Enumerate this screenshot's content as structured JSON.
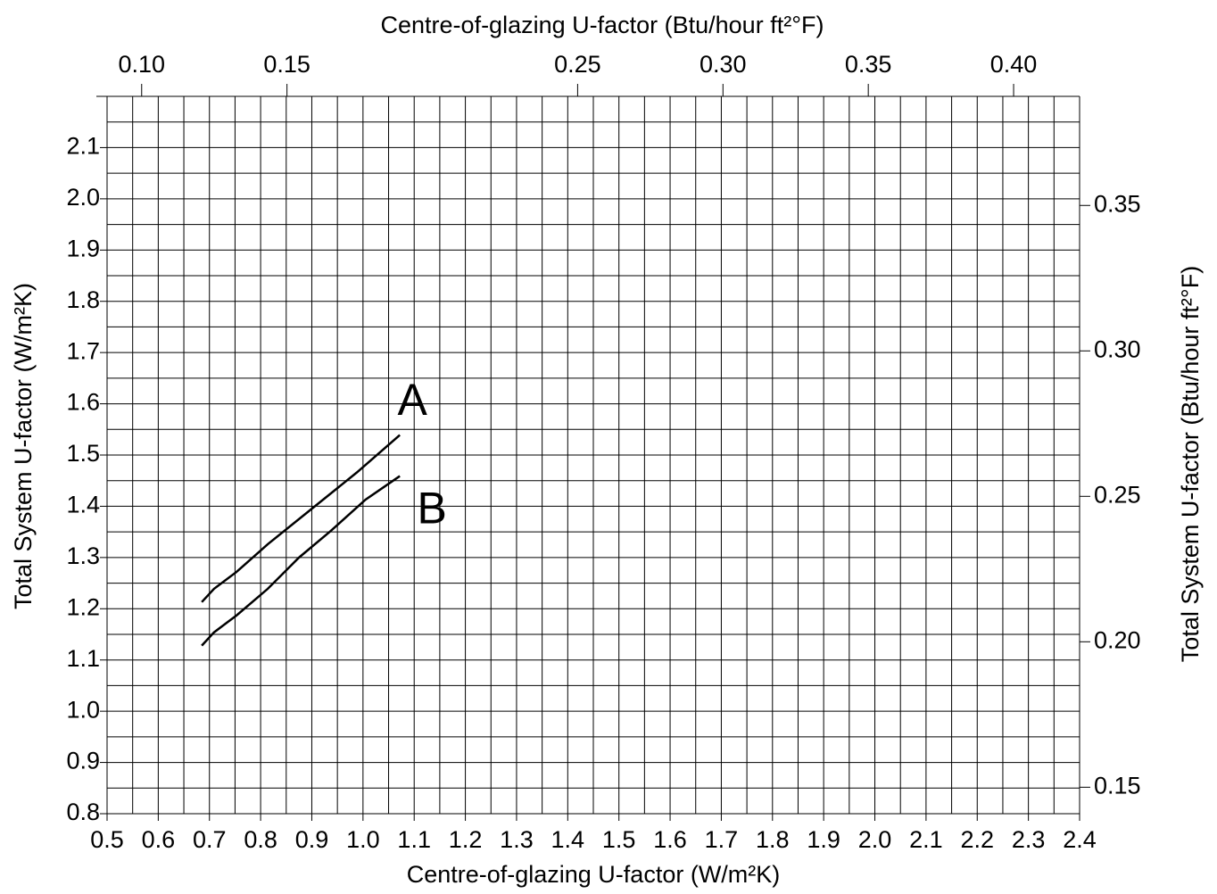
{
  "chart_data": {
    "type": "line",
    "xlabel": "Centre-of-glazing U-factor (W/m²K)",
    "ylabel": "Total System U-factor (W/m²K)",
    "x2label": "Centre-of-glazing U-factor (Btu/hour ft²°F)",
    "y2label": "Total System U-factor (Btu/hour ft²°F)",
    "xlim": [
      0.5,
      2.4
    ],
    "xticks": [
      0.5,
      0.6,
      0.7,
      0.8,
      0.9,
      {
        "value": 1.0,
        "label": "1.0"
      },
      1.1,
      1.2,
      1.3,
      1.4,
      1.5,
      1.6,
      1.7,
      1.8,
      1.9,
      {
        "value": 2.0,
        "label": "2.0"
      },
      2.1,
      2.2,
      2.3,
      2.4
    ],
    "ylim": [
      0.8,
      2.2
    ],
    "yticks": [
      0.8,
      0.9,
      {
        "value": 1.0,
        "label": "1.0"
      },
      1.1,
      1.2,
      1.3,
      1.4,
      1.5,
      1.6,
      1.7,
      1.8,
      1.9,
      {
        "value": 2.0,
        "label": "2.0"
      },
      2.1
    ],
    "x2lim": [
      0.0881,
      0.4227
    ],
    "x2ticks": [
      {
        "value": 0.1,
        "label": "0.10"
      },
      0.15,
      0.25,
      {
        "value": 0.3,
        "label": "0.30"
      },
      0.35,
      {
        "value": 0.4,
        "label": "0.40"
      }
    ],
    "y2lim": [
      0.1409,
      0.3875
    ],
    "y2ticks": [
      0.15,
      {
        "value": 0.2,
        "label": "0.20"
      },
      0.25,
      {
        "value": 0.3,
        "label": "0.30"
      },
      0.35
    ],
    "grid": true,
    "series": [
      {
        "name": "A",
        "color": "#000000",
        "x": [
          0.685,
          0.709,
          0.753,
          0.814,
          0.901,
          0.988,
          1.072
        ],
        "values": [
          1.213,
          1.239,
          1.272,
          1.326,
          1.396,
          1.466,
          1.539
        ]
      },
      {
        "name": "B",
        "color": "#000000",
        "x": [
          0.685,
          0.709,
          0.753,
          0.814,
          0.875,
          0.936,
          1.005,
          1.072
        ],
        "values": [
          1.128,
          1.154,
          1.187,
          1.239,
          1.3,
          1.351,
          1.413,
          1.459
        ]
      }
    ]
  }
}
